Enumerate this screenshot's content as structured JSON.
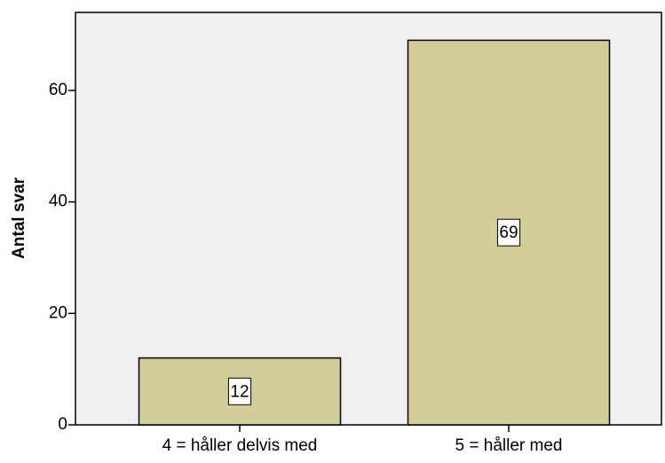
{
  "chart_data": {
    "type": "bar",
    "ylabel": "Antal svar",
    "categories": [
      "4 = håller delvis med",
      "5 = håller med"
    ],
    "values": [
      12,
      69
    ],
    "color": "#d3ce97",
    "background": "#f0f0f0",
    "ylim": [
      0,
      74
    ],
    "yticks": [
      0,
      20,
      40,
      60
    ]
  }
}
